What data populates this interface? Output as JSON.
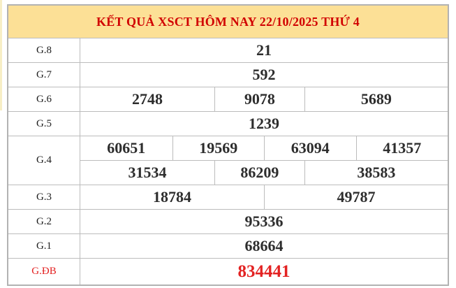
{
  "page": {
    "title": "KẾT QUẢ XSCT HÔM NAY 22/10/2025 THỨ 4"
  },
  "colors": {
    "header_bg": "#fce096",
    "header_text": "#d10000",
    "special": "#e32222",
    "border": "#bcbcbc",
    "outer_border": "#b2b2b2",
    "number": "#2d2d2d",
    "label": "#1f1f1f"
  },
  "results": {
    "rows": [
      {
        "label": "G.8",
        "numbers": [
          "21"
        ]
      },
      {
        "label": "G.7",
        "numbers": [
          "592"
        ]
      },
      {
        "label": "G.6",
        "numbers": [
          "2748",
          "9078",
          "5689"
        ]
      },
      {
        "label": "G.5",
        "numbers": [
          "1239"
        ]
      },
      {
        "label": "G.4",
        "lines": [
          [
            "60651",
            "19569",
            "63094",
            "41357"
          ],
          [
            "31534",
            "86209",
            "38583"
          ]
        ]
      },
      {
        "label": "G.3",
        "numbers": [
          "18784",
          "49787"
        ]
      },
      {
        "label": "G.2",
        "numbers": [
          "95336"
        ]
      },
      {
        "label": "G.1",
        "numbers": [
          "68664"
        ]
      },
      {
        "label": "G.ĐB",
        "numbers": [
          "834441"
        ],
        "special": true
      }
    ]
  }
}
